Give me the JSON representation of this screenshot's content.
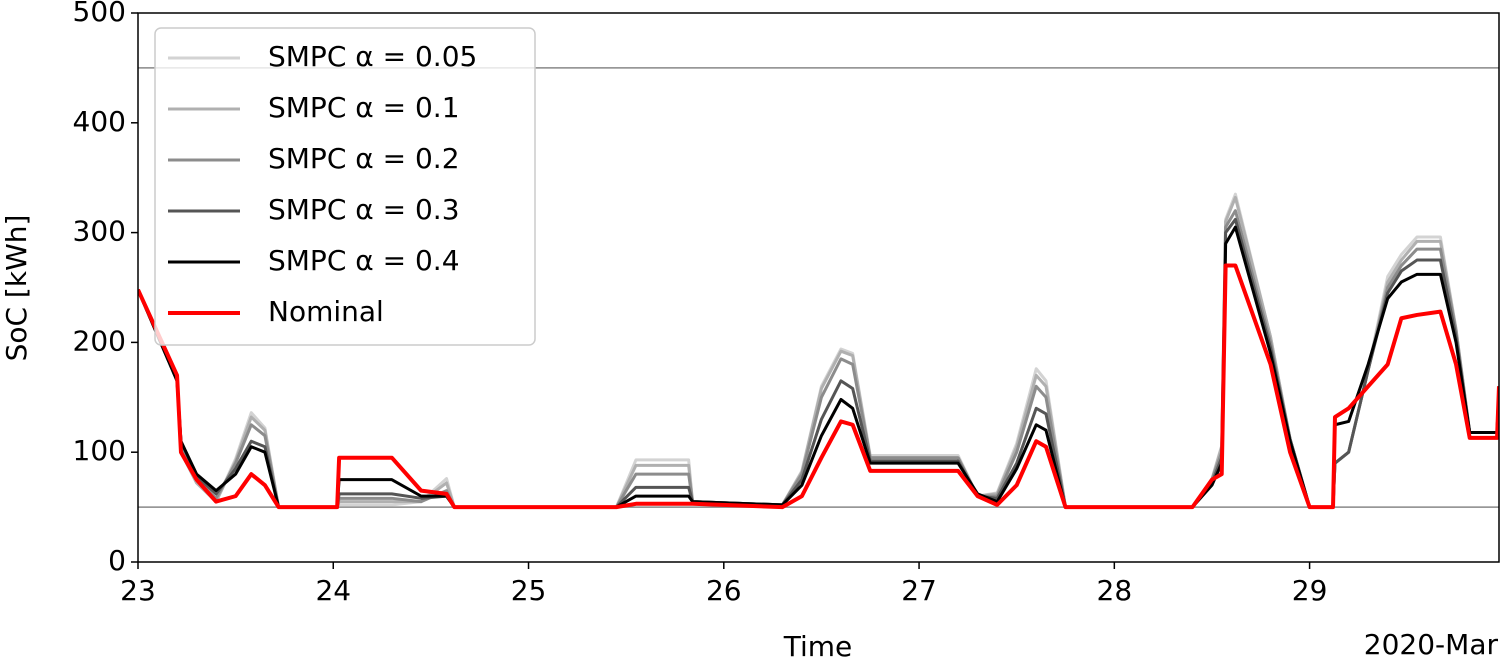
{
  "chart_data": {
    "type": "line",
    "xlabel": "Time",
    "ylabel": "SoC [kWh]",
    "x_offset_label": "2020-Mar",
    "x": [
      23.0,
      23.2,
      23.22,
      23.3,
      23.4,
      23.5,
      23.58,
      23.65,
      23.72,
      24.02,
      24.03,
      24.3,
      24.45,
      24.58,
      24.62,
      25.45,
      25.55,
      25.82,
      25.84,
      26.3,
      26.4,
      26.5,
      26.6,
      26.66,
      26.75,
      27.2,
      27.3,
      27.4,
      27.5,
      27.6,
      27.65,
      27.75,
      28.4,
      28.5,
      28.55,
      28.57,
      28.62,
      28.8,
      28.9,
      29.0,
      29.12,
      29.13,
      29.2,
      29.3,
      29.4,
      29.47,
      29.55,
      29.67,
      29.75,
      29.82,
      29.96,
      29.97
    ],
    "series": [
      {
        "name": "SMPC α = 0.05",
        "color": "#d3d3d3",
        "width": 3,
        "values": [
          248,
          165,
          100,
          72,
          55,
          94,
          136,
          122,
          50,
          50,
          52,
          52,
          55,
          76,
          50,
          50,
          93,
          93,
          55,
          52,
          83,
          160,
          194,
          190,
          97,
          97,
          60,
          63,
          108,
          176,
          165,
          50,
          50,
          76,
          106,
          312,
          335,
          205,
          112,
          50,
          50,
          90,
          100,
          175,
          260,
          280,
          296,
          296,
          212,
          118,
          118,
          160
        ]
      },
      {
        "name": "SMPC α = 0.1",
        "color": "#b0b0b0",
        "width": 3,
        "values": [
          248,
          165,
          100,
          72,
          55,
          92,
          132,
          120,
          50,
          50,
          55,
          55,
          55,
          72,
          50,
          50,
          88,
          88,
          55,
          52,
          82,
          158,
          192,
          188,
          95,
          95,
          60,
          62,
          105,
          170,
          160,
          50,
          50,
          75,
          105,
          310,
          332,
          205,
          112,
          50,
          50,
          90,
          100,
          175,
          255,
          275,
          292,
          292,
          212,
          118,
          118,
          160
        ]
      },
      {
        "name": "SMPC α = 0.2",
        "color": "#8c8c8c",
        "width": 3,
        "values": [
          248,
          165,
          105,
          75,
          58,
          90,
          125,
          115,
          50,
          50,
          58,
          58,
          55,
          65,
          50,
          50,
          80,
          80,
          55,
          52,
          80,
          150,
          185,
          180,
          95,
          95,
          60,
          60,
          100,
          160,
          150,
          50,
          50,
          75,
          100,
          305,
          320,
          200,
          112,
          50,
          50,
          90,
          100,
          175,
          250,
          270,
          285,
          285,
          210,
          118,
          118,
          160
        ]
      },
      {
        "name": "SMPC α = 0.3",
        "color": "#555555",
        "width": 3,
        "values": [
          248,
          165,
          110,
          78,
          62,
          85,
          110,
          105,
          50,
          50,
          62,
          62,
          58,
          60,
          50,
          50,
          68,
          68,
          55,
          52,
          75,
          130,
          165,
          158,
          92,
          92,
          60,
          58,
          90,
          140,
          135,
          50,
          50,
          72,
          95,
          300,
          312,
          195,
          112,
          50,
          50,
          90,
          100,
          175,
          245,
          265,
          275,
          275,
          205,
          118,
          118,
          160
        ]
      },
      {
        "name": "SMPC α = 0.4",
        "color": "#000000",
        "width": 3,
        "values": [
          248,
          165,
          110,
          80,
          65,
          80,
          105,
          100,
          50,
          50,
          75,
          75,
          60,
          60,
          50,
          50,
          60,
          60,
          55,
          52,
          70,
          115,
          148,
          140,
          90,
          90,
          62,
          55,
          85,
          125,
          120,
          50,
          50,
          70,
          90,
          290,
          305,
          190,
          110,
          50,
          50,
          125,
          128,
          180,
          240,
          255,
          262,
          262,
          200,
          118,
          118,
          160
        ]
      },
      {
        "name": "Nominal",
        "color": "#ff0000",
        "width": 4,
        "values": [
          248,
          170,
          100,
          75,
          55,
          60,
          80,
          70,
          50,
          50,
          95,
          95,
          65,
          62,
          50,
          50,
          53,
          53,
          53,
          50,
          60,
          95,
          128,
          125,
          83,
          83,
          60,
          52,
          70,
          110,
          105,
          50,
          50,
          75,
          80,
          270,
          270,
          180,
          100,
          50,
          50,
          132,
          140,
          160,
          180,
          222,
          225,
          228,
          180,
          113,
          113,
          160
        ]
      }
    ],
    "hlines": [
      450,
      50
    ],
    "hline_color": "#888888",
    "xlim": [
      23,
      29.97
    ],
    "xticks": [
      23,
      24,
      25,
      26,
      27,
      28,
      29
    ],
    "ylim": [
      0,
      500
    ],
    "yticks": [
      0,
      100,
      200,
      300,
      400,
      500
    ],
    "legend": "upper-left"
  }
}
